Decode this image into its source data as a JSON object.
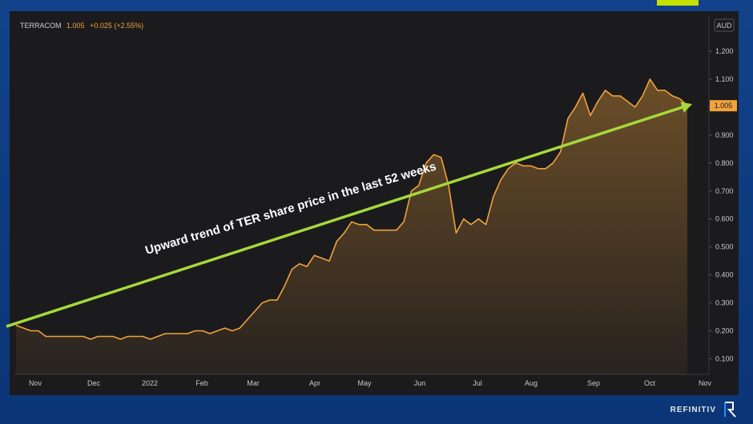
{
  "legend": {
    "name": "TERRACOM",
    "price": "1.005",
    "change": "+0.025 (+2.55%)"
  },
  "currency_label": "AUD",
  "current_price_label": "1.005",
  "brand": "REFINITIV",
  "annotation": "Upward trend of TER share price in the last 52 weeks",
  "colors": {
    "background": "#1b1b1d",
    "line": "#f0a23c",
    "trend": "#a6d83c",
    "accent": "#c5e100",
    "frame": "#0d3a78"
  },
  "chart_data": {
    "type": "area",
    "title": "",
    "xlabel": "",
    "ylabel": "",
    "ylim": [
      0.05,
      1.25
    ],
    "y_ticks": [
      0.1,
      0.2,
      0.3,
      0.4,
      0.5,
      0.6,
      0.7,
      0.8,
      0.9,
      1.0,
      1.1,
      1.2
    ],
    "y_tick_labels": [
      "0.100",
      "0.200",
      "0.300",
      "0.400",
      "0.500",
      "0.600",
      "0.700",
      "0.800",
      "0.900",
      "1.000",
      "1.100",
      "1.200"
    ],
    "x_ticks": [
      "Nov",
      "Dec",
      "2022",
      "Feb",
      "Mar",
      "Apr",
      "May",
      "Jun",
      "Jul",
      "Aug",
      "Sep",
      "Oct",
      "Nov"
    ],
    "grid": false,
    "series": [
      {
        "values": [
          0.22,
          0.21,
          0.2,
          0.2,
          0.18,
          0.18,
          0.18,
          0.18,
          0.18,
          0.18,
          0.17,
          0.18,
          0.18,
          0.18,
          0.17,
          0.18,
          0.18,
          0.18,
          0.17,
          0.18,
          0.19,
          0.19,
          0.19,
          0.19,
          0.2,
          0.2,
          0.19,
          0.2,
          0.21,
          0.2,
          0.21,
          0.24,
          0.27,
          0.3,
          0.31,
          0.31,
          0.36,
          0.42,
          0.44,
          0.43,
          0.47,
          0.46,
          0.45,
          0.52,
          0.55,
          0.59,
          0.58,
          0.58,
          0.56,
          0.56,
          0.56,
          0.56,
          0.59,
          0.7,
          0.72,
          0.8,
          0.83,
          0.82,
          0.72,
          0.55,
          0.6,
          0.58,
          0.6,
          0.58,
          0.68,
          0.74,
          0.78,
          0.8,
          0.79,
          0.79,
          0.78,
          0.78,
          0.8,
          0.84,
          0.96,
          1.0,
          1.05,
          0.97,
          1.02,
          1.06,
          1.04,
          1.04,
          1.02,
          1.0,
          1.04,
          1.1,
          1.06,
          1.06,
          1.04,
          1.03,
          1.005
        ]
      }
    ],
    "trendline": {
      "from": [
        0,
        0.21
      ],
      "to": [
        90,
        1.005
      ]
    }
  }
}
